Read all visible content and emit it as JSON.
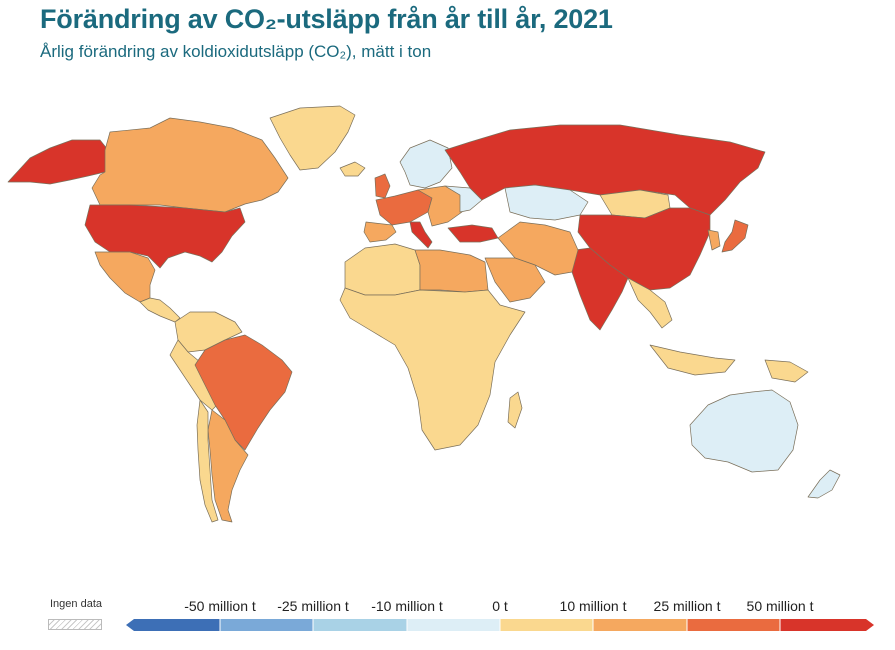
{
  "header": {
    "title": "Förändring av CO₂-utsläpp från år till år, 2021",
    "subtitle": "Årlig förändring av koldioxidutsläpp (CO₂), mätt i ton"
  },
  "legend": {
    "no_data_label": "Ingen data",
    "ticks": [
      "-50 million t",
      "-25 million t",
      "-10 million t",
      "0 t",
      "10 million t",
      "25 million t",
      "50 million t"
    ],
    "bins": [
      {
        "color": "#3d6fb6"
      },
      {
        "color": "#7aa9d8"
      },
      {
        "color": "#a9d2e6"
      },
      {
        "color": "#ddeef6"
      },
      {
        "color": "#fad88f"
      },
      {
        "color": "#f5a85f"
      },
      {
        "color": "#ea6b3f"
      },
      {
        "color": "#d8342a"
      }
    ]
  },
  "colors": {
    "title": "#1b6a7e",
    "decrease_light": "#ddeef6",
    "increase_small": "#fad88f",
    "increase_medium": "#f5a85f",
    "increase_large": "#ea6b3f",
    "increase_largest": "#d8342a"
  },
  "map": {
    "regions": [
      {
        "name": "Alaska (USA)",
        "bin": 7
      },
      {
        "name": "Canada",
        "bin": 5
      },
      {
        "name": "Greenland",
        "bin": 4
      },
      {
        "name": "United States",
        "bin": 7
      },
      {
        "name": "Mexico",
        "bin": 5
      },
      {
        "name": "Central America",
        "bin": 4
      },
      {
        "name": "Colombia / Venezuela",
        "bin": 4
      },
      {
        "name": "Peru / Bolivia",
        "bin": 4
      },
      {
        "name": "Brazil",
        "bin": 6
      },
      {
        "name": "Argentina",
        "bin": 5
      },
      {
        "name": "Chile",
        "bin": 4
      },
      {
        "name": "Iceland",
        "bin": 4
      },
      {
        "name": "Scandinavia",
        "bin": 3
      },
      {
        "name": "United Kingdom",
        "bin": 6
      },
      {
        "name": "France / Germany",
        "bin": 6
      },
      {
        "name": "Spain / Portugal",
        "bin": 5
      },
      {
        "name": "Italy",
        "bin": 7
      },
      {
        "name": "Eastern Europe",
        "bin": 5
      },
      {
        "name": "Ukraine",
        "bin": 3
      },
      {
        "name": "Turkey",
        "bin": 7
      },
      {
        "name": "Russia",
        "bin": 7
      },
      {
        "name": "Kazakhstan",
        "bin": 3
      },
      {
        "name": "Mongolia",
        "bin": 4
      },
      {
        "name": "China",
        "bin": 7
      },
      {
        "name": "Japan",
        "bin": 6
      },
      {
        "name": "Korea",
        "bin": 5
      },
      {
        "name": "India",
        "bin": 7
      },
      {
        "name": "Iran / Central Asia",
        "bin": 5
      },
      {
        "name": "Saudi Arabia",
        "bin": 5
      },
      {
        "name": "North Africa west",
        "bin": 4
      },
      {
        "name": "Libya / Egypt",
        "bin": 5
      },
      {
        "name": "Sub-Saharan Africa",
        "bin": 4
      },
      {
        "name": "Madagascar",
        "bin": 4
      },
      {
        "name": "Southeast Asia",
        "bin": 4
      },
      {
        "name": "Indonesia",
        "bin": 4
      },
      {
        "name": "Papua New Guinea",
        "bin": 4
      },
      {
        "name": "Australia",
        "bin": 3
      },
      {
        "name": "New Zealand",
        "bin": 3
      }
    ]
  }
}
